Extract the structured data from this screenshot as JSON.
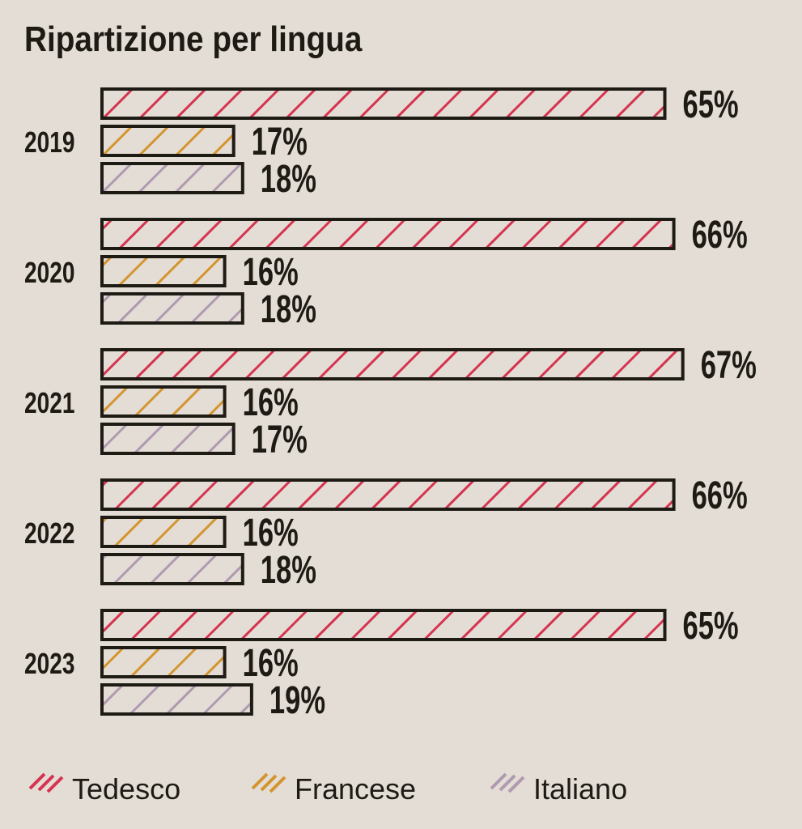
{
  "chart_data": {
    "type": "bar",
    "orientation": "horizontal",
    "title": "Ripartizione per lingua",
    "categories": [
      "2019",
      "2020",
      "2021",
      "2022",
      "2023"
    ],
    "series": [
      {
        "name": "Tedesco",
        "color": "#d6334f",
        "values": [
          65,
          66,
          67,
          66,
          65
        ]
      },
      {
        "name": "Francese",
        "color": "#d4952f",
        "values": [
          17,
          16,
          16,
          16,
          16
        ]
      },
      {
        "name": "Italiano",
        "color": "#b09ab0",
        "values": [
          18,
          18,
          17,
          18,
          19
        ]
      }
    ],
    "value_suffix": "%",
    "legend_position": "bottom"
  }
}
